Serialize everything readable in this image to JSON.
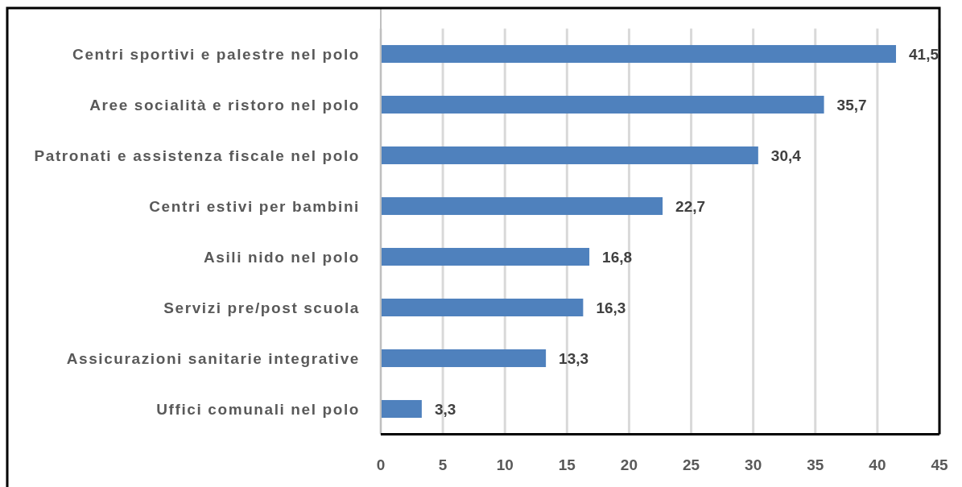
{
  "chart_data": {
    "type": "bar",
    "orientation": "horizontal",
    "categories": [
      "Centri sportivi e palestre nel polo",
      "Aree socialità e ristoro nel polo",
      "Patronati e assistenza fiscale nel polo",
      "Centri estivi per bambini",
      "Asili nido nel polo",
      "Servizi pre/post scuola",
      "Assicurazioni sanitarie integrative",
      "Uffici comunali nel polo"
    ],
    "values": [
      41.5,
      35.7,
      30.4,
      22.7,
      16.8,
      16.3,
      13.3,
      3.3
    ],
    "value_labels": [
      "41,5",
      "35,7",
      "30,4",
      "22,7",
      "16,8",
      "16,3",
      "13,3",
      "3,3"
    ],
    "color": "#4f81bd",
    "xlim": [
      0,
      45
    ],
    "xticks": [
      0,
      5,
      10,
      15,
      20,
      25,
      30,
      35,
      40,
      45
    ],
    "grid": "x"
  }
}
